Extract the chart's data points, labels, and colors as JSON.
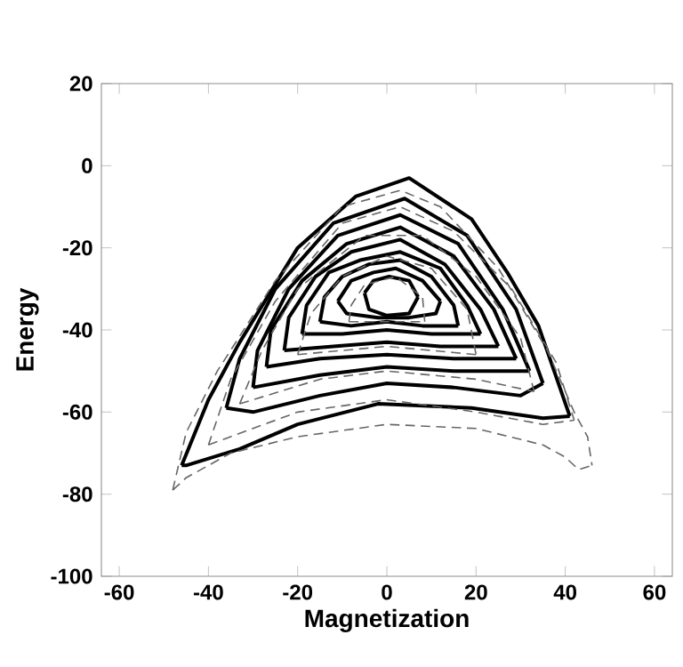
{
  "chart_data": {
    "type": "line",
    "xlabel": "Magnetization",
    "ylabel": "Energy",
    "xlim": [
      -64,
      64
    ],
    "ylim": [
      -100,
      20
    ],
    "xticks": [
      -60,
      -40,
      -20,
      0,
      20,
      40,
      60
    ],
    "yticks": [
      -100,
      -80,
      -60,
      -40,
      -20,
      0,
      20
    ],
    "marker": "none",
    "series": [
      {
        "color": "#000000",
        "line_style": "solid",
        "x": [
          -46,
          -40,
          -33,
          -20,
          -7,
          5,
          19,
          27,
          34,
          41
        ],
        "values": [
          -73,
          -57,
          -43,
          -20,
          -7.5,
          -3,
          -13,
          -26,
          -39,
          -61
        ]
      },
      {
        "color": "#000000",
        "line_style": "solid",
        "x": [
          -46,
          -45,
          -33,
          -20,
          -2,
          19,
          35,
          41
        ],
        "values": [
          -73,
          -73,
          -69,
          -63,
          -58,
          -59,
          -61.5,
          -61
        ]
      },
      {
        "color": "#000000",
        "line_style": "solid",
        "x": [
          -36,
          -33,
          -25,
          -12,
          4,
          18,
          29,
          35
        ],
        "values": [
          -59,
          -47,
          -30,
          -14,
          -8,
          -17,
          -35,
          -53
        ]
      },
      {
        "color": "#000000",
        "line_style": "solid",
        "x": [
          -36,
          -30,
          -15,
          0,
          15,
          30,
          35
        ],
        "values": [
          -59,
          -60,
          -56,
          -53,
          -54,
          -56,
          -53
        ]
      },
      {
        "color": "#000000",
        "line_style": "solid",
        "x": [
          -30,
          -29,
          -22,
          -11,
          3,
          16,
          26,
          32
        ],
        "values": [
          -54,
          -45,
          -30,
          -17,
          -12,
          -19,
          -35,
          -50
        ]
      },
      {
        "color": "#000000",
        "line_style": "solid",
        "x": [
          -30,
          -15,
          0,
          15,
          32
        ],
        "values": [
          -54,
          -51,
          -49,
          -50,
          -50
        ]
      },
      {
        "color": "#000000",
        "line_style": "solid",
        "x": [
          -27,
          -26,
          -19,
          -9,
          3,
          15,
          24,
          29
        ],
        "values": [
          -49,
          -40,
          -28,
          -19,
          -15,
          -22,
          -35,
          -47
        ]
      },
      {
        "color": "#000000",
        "line_style": "solid",
        "x": [
          -27,
          -15,
          0,
          15,
          29
        ],
        "values": [
          -49,
          -47,
          -46,
          -47,
          -47
        ]
      },
      {
        "color": "#000000",
        "line_style": "solid",
        "x": [
          -23,
          -22,
          -16,
          -8,
          3,
          13,
          21,
          25
        ],
        "values": [
          -45,
          -37,
          -27,
          -21,
          -18,
          -24,
          -35,
          -44
        ]
      },
      {
        "color": "#000000",
        "line_style": "solid",
        "x": [
          -23,
          -12,
          0,
          12,
          25
        ],
        "values": [
          -45,
          -44,
          -43,
          -44,
          -44
        ]
      },
      {
        "color": "#000000",
        "line_style": "solid",
        "x": [
          -19,
          -18,
          -13,
          -6,
          3,
          12,
          18,
          21
        ],
        "values": [
          -41,
          -34,
          -26,
          -23,
          -21,
          -25,
          -34,
          -41
        ]
      },
      {
        "color": "#000000",
        "line_style": "solid",
        "x": [
          -19,
          -10,
          0,
          10,
          21
        ],
        "values": [
          -41,
          -41,
          -40,
          -41,
          -41
        ]
      },
      {
        "color": "#000000",
        "line_style": "solid",
        "x": [
          -15,
          -14,
          -10,
          -4,
          3,
          10,
          15,
          16
        ],
        "values": [
          -38,
          -32,
          -27,
          -24,
          -23,
          -27,
          -34,
          -39
        ]
      },
      {
        "color": "#000000",
        "line_style": "solid",
        "x": [
          -15,
          -8,
          0,
          8,
          16
        ],
        "values": [
          -38,
          -39,
          -38,
          -39,
          -39
        ]
      },
      {
        "color": "#000000",
        "line_style": "solid",
        "x": [
          -11,
          -8,
          -3,
          2,
          8,
          12
        ],
        "values": [
          -33,
          -28,
          -26,
          -25,
          -28,
          -33
        ]
      },
      {
        "color": "#000000",
        "line_style": "solid",
        "x": [
          -11,
          -9,
          -2,
          5,
          11,
          12
        ],
        "values": [
          -33,
          -36,
          -37,
          -37,
          -36,
          -33
        ]
      },
      {
        "color": "#000000",
        "line_style": "solid",
        "x": [
          -5,
          -3,
          0.5,
          5,
          7
        ],
        "values": [
          -31,
          -28,
          -27,
          -28,
          -32
        ]
      },
      {
        "color": "#000000",
        "line_style": "solid",
        "x": [
          -5,
          -4,
          0,
          5,
          7
        ],
        "values": [
          -31,
          -35,
          -36.5,
          -36,
          -32
        ]
      },
      {
        "color": "#666666",
        "line_style": "dashed",
        "x": [
          -48,
          -45,
          -38,
          -25,
          -10,
          3,
          12,
          25,
          36,
          42,
          45,
          46
        ],
        "values": [
          -79,
          -65,
          -50,
          -28,
          -10,
          -6,
          -10,
          -25,
          -45,
          -60,
          -66,
          -73
        ]
      },
      {
        "color": "#666666",
        "line_style": "dashed",
        "x": [
          -48,
          -45,
          -35,
          -20,
          0,
          20,
          35,
          40,
          43,
          46
        ],
        "values": [
          -79,
          -76,
          -70,
          -66,
          -63,
          -64,
          -68,
          -71,
          -74,
          -73
        ]
      },
      {
        "color": "#666666",
        "line_style": "dashed",
        "x": [
          -40,
          -35,
          -25,
          -10,
          3,
          15,
          28,
          38,
          42
        ],
        "values": [
          -68,
          -52,
          -33,
          -14,
          -10,
          -16,
          -30,
          -48,
          -62
        ]
      },
      {
        "color": "#666666",
        "line_style": "dashed",
        "x": [
          -40,
          -20,
          0,
          20,
          35,
          42
        ],
        "values": [
          -68,
          -60,
          -57,
          -60,
          -63,
          -62
        ]
      },
      {
        "color": "#666666",
        "line_style": "dashed",
        "x": [
          -33,
          -28,
          -20,
          -5,
          8,
          20,
          30,
          33
        ],
        "values": [
          -58,
          -45,
          -30,
          -17,
          -17,
          -27,
          -42,
          -55
        ]
      },
      {
        "color": "#666666",
        "line_style": "dashed",
        "x": [
          -33,
          -15,
          0,
          20,
          33
        ],
        "values": [
          -58,
          -52,
          -50,
          -52,
          -55
        ]
      },
      {
        "color": "#666666",
        "line_style": "dashed",
        "x": [
          -20,
          -17,
          -10,
          0,
          10,
          18,
          20
        ],
        "values": [
          -46,
          -36,
          -27,
          -22,
          -25,
          -35,
          -46
        ]
      },
      {
        "color": "#666666",
        "line_style": "dashed",
        "x": [
          -20,
          0,
          20
        ],
        "values": [
          -46,
          -44,
          -46
        ]
      },
      {
        "color": "#666666",
        "line_style": "dashed",
        "x": [
          -8.5,
          -8,
          -5,
          2,
          8,
          8.5
        ],
        "values": [
          -38,
          -34,
          -29,
          -27,
          -32,
          -38
        ]
      },
      {
        "color": "#666666",
        "line_style": "dashed",
        "x": [
          -8.5,
          0,
          8.5
        ],
        "values": [
          -38,
          -38,
          -38
        ]
      }
    ]
  }
}
